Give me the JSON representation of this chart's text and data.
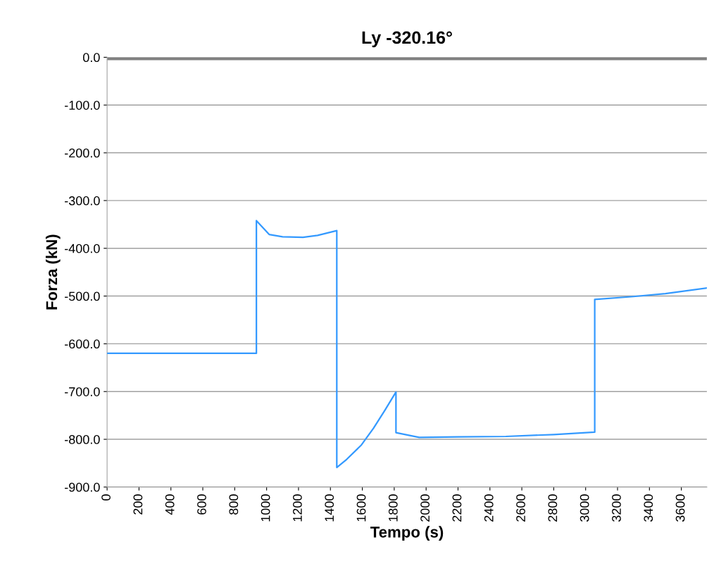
{
  "chart_data": {
    "type": "line",
    "title": "Ly -320.16°",
    "xlabel": "Tempo (s)",
    "ylabel": "Forza (kN)",
    "series": [
      {
        "color": "#3399ff",
        "x": [
          0,
          936,
          936,
          1016,
          1100,
          1228,
          1320,
          1440,
          1440,
          1502,
          1594,
          1670,
          1740,
          1811,
          1811,
          1957,
          2200,
          2500,
          2800,
          3057,
          3057,
          3300,
          3500,
          3760
        ],
        "values": [
          -620,
          -620,
          -342,
          -371,
          -376,
          -377,
          -373,
          -363,
          -859,
          -842,
          -812,
          -777,
          -740,
          -701,
          -786,
          -796,
          -795,
          -794,
          -790,
          -785,
          -507,
          -501,
          -495,
          -483
        ]
      }
    ],
    "ref_lines": [
      {
        "axis": "y",
        "value": 0,
        "color": "#808080"
      }
    ],
    "xlim": [
      0,
      3760
    ],
    "xticks": [
      0,
      200,
      400,
      600,
      800,
      1000,
      1200,
      1400,
      1600,
      1800,
      2000,
      2200,
      2400,
      2600,
      2800,
      3000,
      3200,
      3400,
      3600
    ],
    "ylim": [
      -900,
      0
    ],
    "yticks": [
      {
        "value": 0,
        "label": "0.0"
      },
      {
        "value": -100,
        "label": "-100.0"
      },
      {
        "value": -200,
        "label": "-200.0"
      },
      {
        "value": -300,
        "label": "-300.0"
      },
      {
        "value": -400,
        "label": "-400.0"
      },
      {
        "value": -500,
        "label": "-500.0"
      },
      {
        "value": -600,
        "label": "-600.0"
      },
      {
        "value": -700,
        "label": "-700.0"
      },
      {
        "value": -800,
        "label": "-800.0"
      },
      {
        "value": -900,
        "label": "-900.0"
      }
    ],
    "grid": "y",
    "legend": false,
    "marker": "none",
    "line_style": "solid"
  }
}
